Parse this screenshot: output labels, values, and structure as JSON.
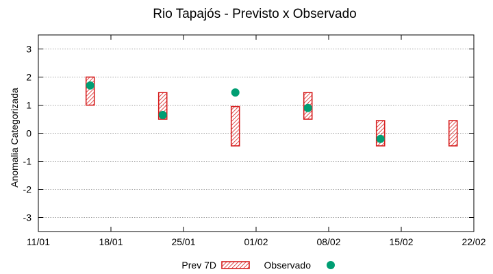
{
  "chart_data": {
    "type": "range-bar-scatter",
    "title": "Rio Tapajós - Previsto x Observado",
    "xlabel": "",
    "ylabel": "Anomalia Categorizada",
    "x_ticks": [
      "11/01",
      "18/01",
      "25/01",
      "01/02",
      "08/02",
      "15/02",
      "22/02"
    ],
    "x_tick_days": [
      0,
      7,
      14,
      21,
      28,
      35,
      42
    ],
    "xlim_days": [
      0,
      42
    ],
    "y_ticks": [
      "3",
      "2",
      "1",
      "0",
      "-1",
      "-2",
      "-3"
    ],
    "y_tick_values": [
      3,
      2,
      1,
      0,
      -1,
      -2,
      -3
    ],
    "ylim": [
      -3.5,
      3.5
    ],
    "grid": true,
    "series": [
      {
        "name": "Prev 7D",
        "kind": "range",
        "color": "#d62020",
        "points": [
          {
            "day": 5,
            "low": 1.0,
            "high": 2.0
          },
          {
            "day": 12,
            "low": 0.5,
            "high": 1.45
          },
          {
            "day": 19,
            "low": -0.45,
            "high": 0.95
          },
          {
            "day": 26,
            "low": 0.5,
            "high": 1.45
          },
          {
            "day": 33,
            "low": -0.45,
            "high": 0.45
          },
          {
            "day": 40,
            "low": -0.45,
            "high": 0.45
          }
        ]
      },
      {
        "name": "Observado",
        "kind": "point",
        "color": "#009e73",
        "points": [
          {
            "day": 5,
            "value": 1.7
          },
          {
            "day": 12,
            "value": 0.65
          },
          {
            "day": 19,
            "value": 1.45
          },
          {
            "day": 26,
            "value": 0.9
          },
          {
            "day": 33,
            "value": -0.2
          }
        ]
      }
    ],
    "legend": [
      "Prev 7D",
      "Observado"
    ],
    "legend_position": "bottom-center"
  }
}
